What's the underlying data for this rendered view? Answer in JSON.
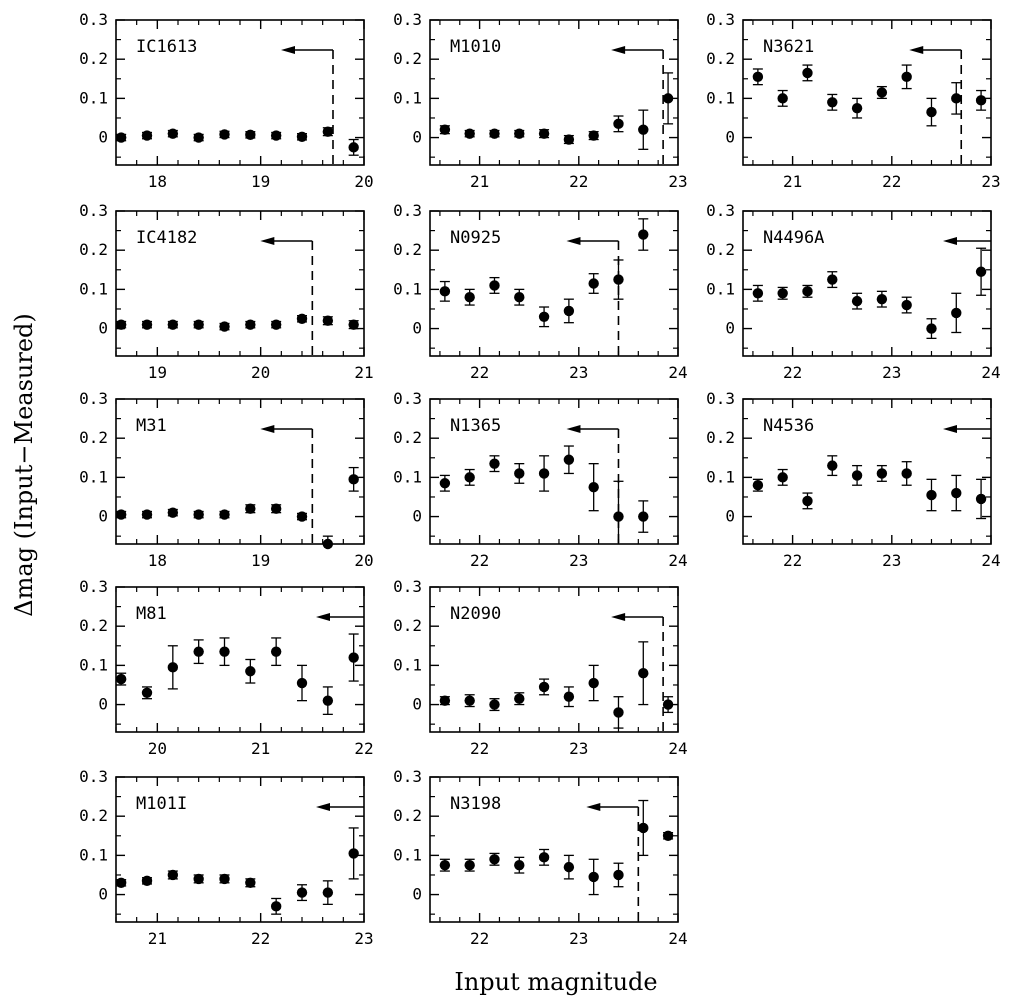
{
  "figure": {
    "ylabel": "Δmag (Input−Measured)",
    "xlabel": "Input magnitude"
  },
  "chart_data": [
    {
      "type": "scatter",
      "name": "IC1613",
      "xlim": [
        17.6,
        20.0
      ],
      "ylim": [
        -0.07,
        0.3
      ],
      "xticks": [
        18,
        19,
        20
      ],
      "yticks": [
        0,
        0.1,
        0.2,
        0.3
      ],
      "limit_mag": 19.7,
      "x": [
        17.65,
        17.9,
        18.15,
        18.4,
        18.65,
        18.9,
        19.15,
        19.4,
        19.65,
        19.9
      ],
      "y": [
        0.0,
        0.005,
        0.01,
        0.0,
        0.008,
        0.007,
        0.005,
        0.002,
        0.015,
        -0.025
      ],
      "err": [
        0.008,
        0.008,
        0.008,
        0.008,
        0.008,
        0.008,
        0.008,
        0.008,
        0.01,
        0.02
      ]
    },
    {
      "type": "scatter",
      "name": "M1010",
      "xlim": [
        20.5,
        23.0
      ],
      "ylim": [
        -0.07,
        0.3
      ],
      "xticks": [
        21,
        22,
        23
      ],
      "yticks": [
        0,
        0.1,
        0.2,
        0.3
      ],
      "limit_mag": 22.85,
      "x": [
        20.65,
        20.9,
        21.15,
        21.4,
        21.65,
        21.9,
        22.15,
        22.4,
        22.65,
        22.9
      ],
      "y": [
        0.02,
        0.01,
        0.01,
        0.01,
        0.01,
        -0.005,
        0.005,
        0.035,
        0.02,
        0.1
      ],
      "err": [
        0.01,
        0.008,
        0.008,
        0.008,
        0.01,
        0.01,
        0.01,
        0.02,
        0.05,
        0.065
      ]
    },
    {
      "type": "scatter",
      "name": "N3621",
      "xlim": [
        20.5,
        23.0
      ],
      "ylim": [
        -0.07,
        0.3
      ],
      "xticks": [
        21,
        22,
        23
      ],
      "yticks": [
        0,
        0.1,
        0.2,
        0.3
      ],
      "limit_mag": 22.7,
      "x": [
        20.65,
        20.9,
        21.15,
        21.4,
        21.65,
        21.9,
        22.15,
        22.4,
        22.65,
        22.9
      ],
      "y": [
        0.155,
        0.1,
        0.165,
        0.09,
        0.075,
        0.115,
        0.155,
        0.065,
        0.1,
        0.095
      ],
      "err": [
        0.02,
        0.02,
        0.02,
        0.02,
        0.025,
        0.015,
        0.03,
        0.035,
        0.04,
        0.025
      ]
    },
    {
      "type": "scatter",
      "name": "IC4182",
      "xlim": [
        18.6,
        21.0
      ],
      "ylim": [
        -0.07,
        0.3
      ],
      "xticks": [
        19,
        20,
        21
      ],
      "yticks": [
        0,
        0.1,
        0.2,
        0.3
      ],
      "limit_mag": 20.5,
      "x": [
        18.65,
        18.9,
        19.15,
        19.4,
        19.65,
        19.9,
        20.15,
        20.4,
        20.65,
        20.9
      ],
      "y": [
        0.01,
        0.01,
        0.01,
        0.01,
        0.005,
        0.01,
        0.01,
        0.025,
        0.02,
        0.01
      ],
      "err": [
        0.008,
        0.008,
        0.008,
        0.008,
        0.008,
        0.008,
        0.008,
        0.008,
        0.01,
        0.01
      ]
    },
    {
      "type": "scatter",
      "name": "N0925",
      "xlim": [
        21.5,
        24.0
      ],
      "ylim": [
        -0.07,
        0.3
      ],
      "xticks": [
        22,
        23,
        24
      ],
      "yticks": [
        0,
        0.1,
        0.2,
        0.3
      ],
      "limit_mag": 23.4,
      "x": [
        21.65,
        21.9,
        22.15,
        22.4,
        22.65,
        22.9,
        23.15,
        23.4,
        23.65
      ],
      "y": [
        0.095,
        0.08,
        0.11,
        0.08,
        0.03,
        0.045,
        0.115,
        0.125,
        0.24
      ],
      "err": [
        0.025,
        0.02,
        0.02,
        0.02,
        0.025,
        0.03,
        0.025,
        0.05,
        0.04
      ]
    },
    {
      "type": "scatter",
      "name": "N4496A",
      "xlim": [
        21.5,
        24.0
      ],
      "ylim": [
        -0.07,
        0.3
      ],
      "xticks": [
        22,
        23,
        24
      ],
      "yticks": [
        0,
        0.1,
        0.2,
        0.3
      ],
      "limit_mag": null,
      "x": [
        21.65,
        21.9,
        22.15,
        22.4,
        22.65,
        22.9,
        23.15,
        23.4,
        23.65,
        23.9
      ],
      "y": [
        0.09,
        0.09,
        0.095,
        0.125,
        0.07,
        0.075,
        0.06,
        0.0,
        0.04,
        0.145
      ],
      "err": [
        0.02,
        0.015,
        0.015,
        0.02,
        0.02,
        0.02,
        0.02,
        0.025,
        0.05,
        0.06
      ]
    },
    {
      "type": "scatter",
      "name": "M31",
      "xlim": [
        17.6,
        20.0
      ],
      "ylim": [
        -0.07,
        0.3
      ],
      "xticks": [
        18,
        19,
        20
      ],
      "yticks": [
        0,
        0.1,
        0.2,
        0.3
      ],
      "limit_mag": 19.5,
      "x": [
        17.65,
        17.9,
        18.15,
        18.4,
        18.65,
        18.9,
        19.15,
        19.4,
        19.65,
        19.9
      ],
      "y": [
        0.005,
        0.005,
        0.01,
        0.005,
        0.005,
        0.02,
        0.02,
        0.0,
        -0.07,
        0.095
      ],
      "err": [
        0.008,
        0.008,
        0.008,
        0.008,
        0.008,
        0.01,
        0.01,
        0.008,
        0.02,
        0.03
      ]
    },
    {
      "type": "scatter",
      "name": "N1365",
      "xlim": [
        21.5,
        24.0
      ],
      "ylim": [
        -0.07,
        0.3
      ],
      "xticks": [
        22,
        23,
        24
      ],
      "yticks": [
        0,
        0.1,
        0.2,
        0.3
      ],
      "limit_mag": 23.4,
      "x": [
        21.65,
        21.9,
        22.15,
        22.4,
        22.65,
        22.9,
        23.15,
        23.4,
        23.65
      ],
      "y": [
        0.085,
        0.1,
        0.135,
        0.11,
        0.11,
        0.145,
        0.075,
        0.0,
        0.0
      ],
      "err": [
        0.02,
        0.02,
        0.02,
        0.025,
        0.045,
        0.035,
        0.06,
        0.09,
        0.04
      ]
    },
    {
      "type": "scatter",
      "name": "N4536",
      "xlim": [
        21.5,
        24.0
      ],
      "ylim": [
        -0.07,
        0.3
      ],
      "xticks": [
        22,
        23,
        24
      ],
      "yticks": [
        0,
        0.1,
        0.2,
        0.3
      ],
      "limit_mag": null,
      "x": [
        21.65,
        21.9,
        22.15,
        22.4,
        22.65,
        22.9,
        23.15,
        23.4,
        23.65,
        23.9
      ],
      "y": [
        0.08,
        0.1,
        0.04,
        0.13,
        0.105,
        0.11,
        0.11,
        0.055,
        0.06,
        0.045
      ],
      "err": [
        0.015,
        0.02,
        0.02,
        0.025,
        0.025,
        0.02,
        0.03,
        0.04,
        0.045,
        0.05
      ]
    },
    {
      "type": "scatter",
      "name": "M81",
      "xlim": [
        19.6,
        22.0
      ],
      "ylim": [
        -0.07,
        0.3
      ],
      "xticks": [
        20,
        21,
        22
      ],
      "yticks": [
        0,
        0.1,
        0.2,
        0.3
      ],
      "limit_mag": null,
      "x": [
        19.65,
        19.9,
        20.15,
        20.4,
        20.65,
        20.9,
        21.15,
        21.4,
        21.65,
        21.9
      ],
      "y": [
        0.065,
        0.03,
        0.095,
        0.135,
        0.135,
        0.085,
        0.135,
        0.055,
        0.01,
        0.12
      ],
      "err": [
        0.015,
        0.015,
        0.055,
        0.03,
        0.035,
        0.03,
        0.035,
        0.045,
        0.035,
        0.06
      ]
    },
    {
      "type": "scatter",
      "name": "N2090",
      "xlim": [
        21.5,
        24.0
      ],
      "ylim": [
        -0.07,
        0.3
      ],
      "xticks": [
        22,
        23,
        24
      ],
      "yticks": [
        0,
        0.1,
        0.2,
        0.3
      ],
      "limit_mag": 23.85,
      "x": [
        21.65,
        21.9,
        22.15,
        22.4,
        22.65,
        22.9,
        23.15,
        23.4,
        23.65,
        23.9
      ],
      "y": [
        0.01,
        0.01,
        0.0,
        0.015,
        0.045,
        0.02,
        0.055,
        -0.02,
        0.08,
        0.0
      ],
      "err": [
        0.01,
        0.015,
        0.015,
        0.015,
        0.02,
        0.025,
        0.045,
        0.04,
        0.08,
        0.02
      ]
    },
    {
      "type": "scatter",
      "name": "M101I",
      "xlim": [
        20.6,
        23.0
      ],
      "ylim": [
        -0.07,
        0.3
      ],
      "xticks": [
        21,
        22,
        23
      ],
      "yticks": [
        0,
        0.1,
        0.2,
        0.3
      ],
      "limit_mag": null,
      "x": [
        20.65,
        20.9,
        21.15,
        21.4,
        21.65,
        21.9,
        22.15,
        22.4,
        22.65,
        22.9
      ],
      "y": [
        0.03,
        0.035,
        0.05,
        0.04,
        0.04,
        0.03,
        -0.03,
        0.005,
        0.005,
        0.105
      ],
      "err": [
        0.008,
        0.008,
        0.01,
        0.01,
        0.01,
        0.01,
        0.02,
        0.02,
        0.03,
        0.065
      ]
    },
    {
      "type": "scatter",
      "name": "N3198",
      "xlim": [
        21.5,
        24.0
      ],
      "ylim": [
        -0.07,
        0.3
      ],
      "xticks": [
        22,
        23,
        24
      ],
      "yticks": [
        0,
        0.1,
        0.2,
        0.3
      ],
      "limit_mag": 23.6,
      "x": [
        21.65,
        21.9,
        22.15,
        22.4,
        22.65,
        22.9,
        23.15,
        23.4,
        23.65,
        23.9
      ],
      "y": [
        0.075,
        0.075,
        0.09,
        0.075,
        0.095,
        0.07,
        0.045,
        0.05,
        0.17,
        0.15
      ],
      "err": [
        0.015,
        0.015,
        0.015,
        0.02,
        0.02,
        0.03,
        0.045,
        0.03,
        0.07,
        0.008
      ]
    }
  ]
}
